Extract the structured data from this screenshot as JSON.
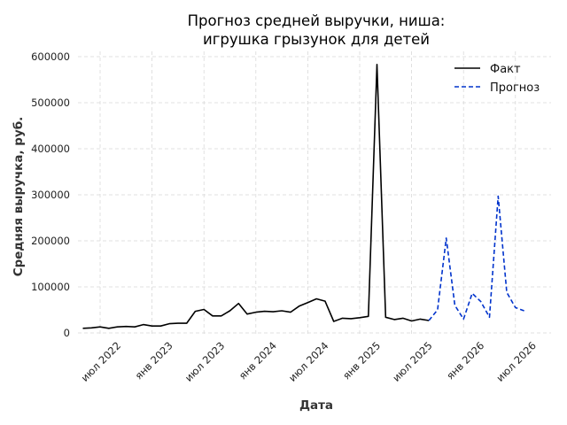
{
  "chart_data": {
    "type": "line",
    "title": [
      "Прогноз средней выручки, ниша:",
      "игрушка грызунок для детей"
    ],
    "xlabel": "Дата",
    "ylabel": "Средняя выручка, руб.",
    "ylim": [
      0,
      610000
    ],
    "yticks": [
      0,
      100000,
      200000,
      300000,
      400000,
      500000,
      600000
    ],
    "ytick_labels": [
      "0",
      "100000",
      "200000",
      "300000",
      "400000",
      "500000",
      "600000"
    ],
    "xlim": [
      "2022-04",
      "2026-09"
    ],
    "xticks": [
      "2022-07",
      "2023-01",
      "2023-07",
      "2024-01",
      "2024-07",
      "2025-01",
      "2025-07",
      "2026-01",
      "2026-07"
    ],
    "xtick_labels": [
      "июл 2022",
      "янв 2023",
      "июл 2023",
      "янв 2024",
      "июл 2024",
      "янв 2025",
      "июл 2025",
      "янв 2026",
      "июл 2026"
    ],
    "grid": true,
    "legend": "top-right",
    "series": [
      {
        "name": "Факт",
        "style": "solid",
        "color": "#000000",
        "x": [
          "2022-05",
          "2022-06",
          "2022-07",
          "2022-08",
          "2022-09",
          "2022-10",
          "2022-11",
          "2022-12",
          "2023-01",
          "2023-02",
          "2023-03",
          "2023-04",
          "2023-05",
          "2023-06",
          "2023-07",
          "2023-08",
          "2023-09",
          "2023-10",
          "2023-11",
          "2023-12",
          "2024-01",
          "2024-02",
          "2024-03",
          "2024-04",
          "2024-05",
          "2024-06",
          "2024-07",
          "2024-08",
          "2024-09",
          "2024-10",
          "2024-11",
          "2024-12",
          "2025-01",
          "2025-02",
          "2025-03",
          "2025-04",
          "2025-05",
          "2025-06",
          "2025-07",
          "2025-08",
          "2025-09"
        ],
        "y": [
          10000,
          11000,
          13000,
          10000,
          13000,
          14000,
          13000,
          18000,
          15000,
          15000,
          20000,
          21000,
          21000,
          47000,
          51000,
          37000,
          37000,
          48000,
          64000,
          41000,
          45000,
          47000,
          46000,
          48000,
          45000,
          58000,
          66000,
          74000,
          69000,
          25000,
          32000,
          31000,
          33000,
          36000,
          583000,
          34000,
          29000,
          32000,
          26000,
          30000,
          27000
        ]
      },
      {
        "name": "Прогноз",
        "style": "dashed",
        "color": "#0033cc",
        "x": [
          "2025-09",
          "2025-10",
          "2025-11",
          "2025-12",
          "2026-01",
          "2026-02",
          "2026-03",
          "2026-04",
          "2026-05",
          "2026-06",
          "2026-07",
          "2026-08"
        ],
        "y": [
          27000,
          50000,
          206000,
          60000,
          30000,
          86000,
          68000,
          34000,
          297000,
          88000,
          55000,
          48000
        ]
      }
    ]
  }
}
